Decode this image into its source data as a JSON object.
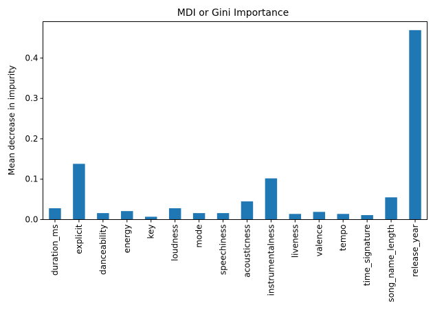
{
  "chart_data": {
    "type": "bar",
    "title": "MDI or Gini Importance",
    "xlabel": "",
    "ylabel": "Mean decrease in impurity",
    "categories": [
      "duration_ms",
      "explicit",
      "danceability",
      "energy",
      "key",
      "loudness",
      "mode",
      "speechiness",
      "acousticness",
      "instrumentalness",
      "liveness",
      "valence",
      "tempo",
      "time_signature",
      "song_name_length",
      "release_year"
    ],
    "values": [
      0.028,
      0.138,
      0.016,
      0.021,
      0.007,
      0.028,
      0.016,
      0.016,
      0.045,
      0.102,
      0.014,
      0.019,
      0.014,
      0.011,
      0.055,
      0.469
    ],
    "ylim": [
      0,
      0.49
    ],
    "yticks": [
      0.0,
      0.1,
      0.2,
      0.3,
      0.4
    ],
    "ytick_labels": [
      "0.0",
      "0.1",
      "0.2",
      "0.3",
      "0.4"
    ],
    "grid": false,
    "legend": "none",
    "bar_color": "#1f77b4"
  }
}
